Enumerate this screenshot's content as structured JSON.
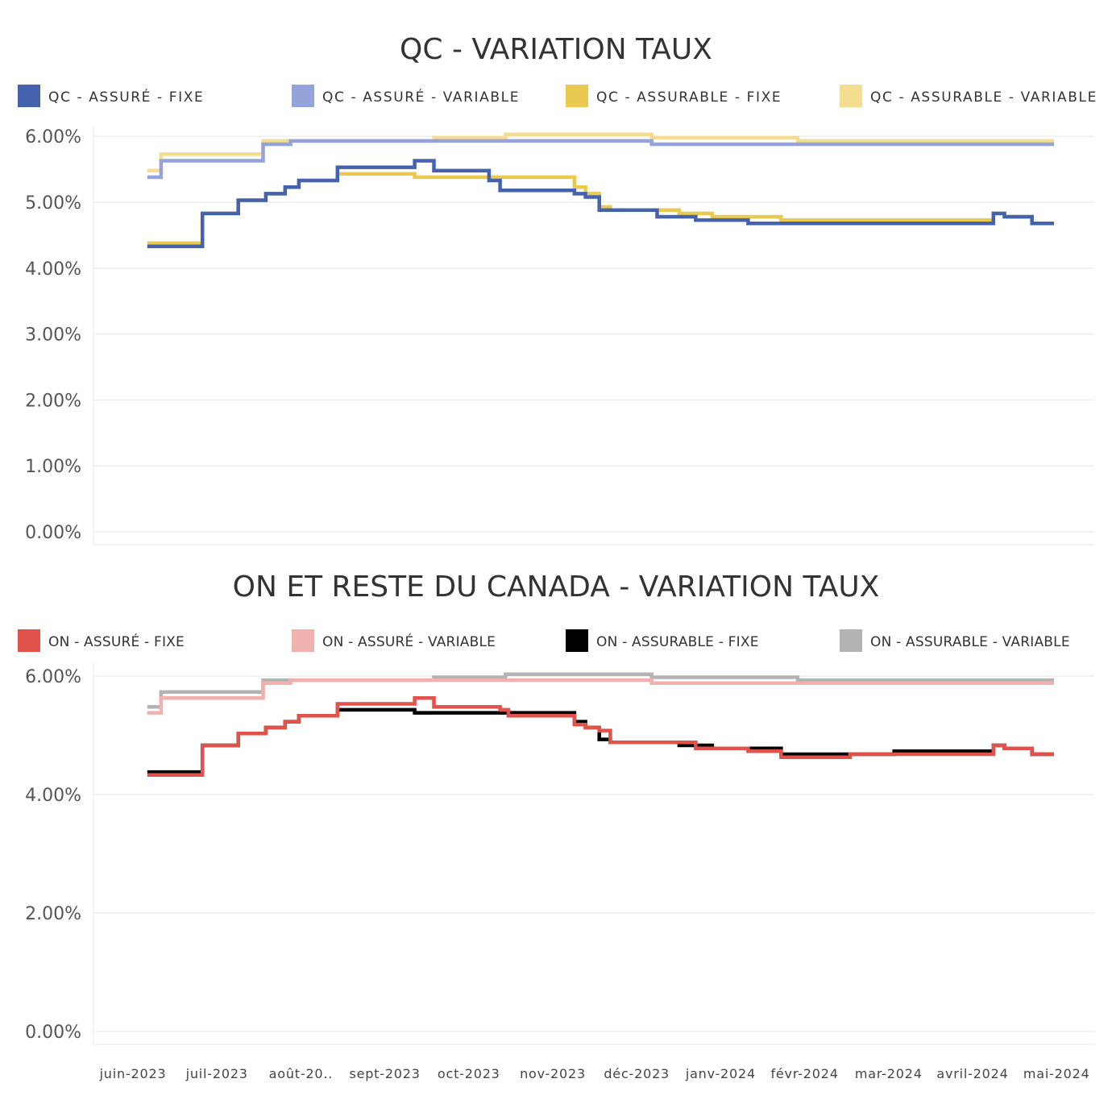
{
  "chart_data": [
    {
      "type": "line",
      "title": "QC - VARIATION TAUX",
      "xlabel": "",
      "ylabel": "",
      "ylim": [
        0,
        6.15
      ],
      "y_ticks": [
        "0.00%",
        "1.00%",
        "2.00%",
        "3.00%",
        "4.00%",
        "5.00%",
        "6.00%"
      ],
      "y_tick_values": [
        0,
        1,
        2,
        3,
        4,
        5,
        6
      ],
      "grid": true,
      "legend_position": "top",
      "series": [
        {
          "name": "QC - ASSURÉ - FIXE",
          "color": "#4563ad",
          "x": [
            "2023-05-31",
            "2023-06-20",
            "2023-06-20",
            "2023-07-03",
            "2023-07-03",
            "2023-07-13",
            "2023-07-13",
            "2023-07-20",
            "2023-07-20",
            "2023-07-25",
            "2023-07-25",
            "2023-08-08",
            "2023-08-08",
            "2023-09-05",
            "2023-09-05",
            "2023-09-12",
            "2023-09-12",
            "2023-09-17",
            "2023-09-17",
            "2023-10-02",
            "2023-10-02",
            "2023-10-06",
            "2023-10-06",
            "2023-11-02",
            "2023-11-02",
            "2023-11-06",
            "2023-11-06",
            "2023-11-11",
            "2023-11-11",
            "2023-11-15",
            "2023-11-15",
            "2023-12-02",
            "2023-12-02",
            "2023-12-16",
            "2023-12-16",
            "2024-01-04",
            "2024-01-04",
            "2024-01-16",
            "2024-01-16",
            "2024-04-02",
            "2024-04-02",
            "2024-04-06",
            "2024-04-06",
            "2024-04-16",
            "2024-04-16",
            "2024-04-24"
          ],
          "y": [
            4.33,
            4.33,
            4.83,
            4.83,
            5.03,
            5.03,
            5.13,
            5.13,
            5.23,
            5.23,
            5.33,
            5.33,
            5.53,
            5.53,
            5.63,
            5.63,
            5.48,
            5.48,
            5.48,
            5.48,
            5.33,
            5.33,
            5.18,
            5.18,
            5.13,
            5.13,
            5.08,
            5.08,
            4.88,
            4.88,
            4.88,
            4.88,
            4.78,
            4.78,
            4.73,
            4.73,
            4.68,
            4.68,
            4.68,
            4.68,
            4.83,
            4.83,
            4.78,
            4.78,
            4.68,
            4.68
          ]
        },
        {
          "name": "QC - ASSURÉ - VARIABLE",
          "color": "#96a3db",
          "x": [
            "2023-05-31",
            "2023-06-05",
            "2023-06-05",
            "2023-07-12",
            "2023-07-12",
            "2023-07-22",
            "2023-07-22",
            "2023-11-30",
            "2023-11-30",
            "2024-04-24"
          ],
          "y": [
            5.38,
            5.38,
            5.63,
            5.63,
            5.88,
            5.88,
            5.93,
            5.93,
            5.88,
            5.88
          ]
        },
        {
          "name": "QC - ASSURABLE - FIXE",
          "color": "#e9c94f",
          "x": [
            "2023-05-31",
            "2023-06-20",
            "2023-06-20",
            "2023-07-03",
            "2023-07-03",
            "2023-07-13",
            "2023-07-13",
            "2023-07-20",
            "2023-07-20",
            "2023-07-25",
            "2023-07-25",
            "2023-08-08",
            "2023-08-08",
            "2023-09-05",
            "2023-09-05",
            "2023-11-02",
            "2023-11-02",
            "2023-11-06",
            "2023-11-06",
            "2023-11-11",
            "2023-11-11",
            "2023-11-15",
            "2023-11-15",
            "2023-12-10",
            "2023-12-10",
            "2023-12-22",
            "2023-12-22",
            "2024-01-16",
            "2024-01-16",
            "2024-04-02",
            "2024-04-02",
            "2024-04-06",
            "2024-04-06",
            "2024-04-16",
            "2024-04-16",
            "2024-04-24"
          ],
          "y": [
            4.38,
            4.38,
            4.83,
            4.83,
            5.03,
            5.03,
            5.13,
            5.13,
            5.23,
            5.23,
            5.33,
            5.33,
            5.43,
            5.43,
            5.38,
            5.38,
            5.23,
            5.23,
            5.13,
            5.13,
            4.93,
            4.93,
            4.88,
            4.88,
            4.83,
            4.83,
            4.78,
            4.78,
            4.73,
            4.73,
            4.83,
            4.83,
            4.78,
            4.78,
            4.68,
            4.68
          ]
        },
        {
          "name": "QC - ASSURABLE - VARIABLE",
          "color": "#f4dd8e",
          "x": [
            "2023-05-31",
            "2023-06-05",
            "2023-06-05",
            "2023-07-12",
            "2023-07-12",
            "2023-09-12",
            "2023-09-12",
            "2023-10-08",
            "2023-10-08",
            "2023-11-30",
            "2023-11-30",
            "2024-01-22",
            "2024-01-22",
            "2024-04-24"
          ],
          "y": [
            5.48,
            5.48,
            5.73,
            5.73,
            5.93,
            5.93,
            5.98,
            5.98,
            6.03,
            6.03,
            5.98,
            5.98,
            5.93,
            5.93
          ]
        }
      ]
    },
    {
      "type": "line",
      "title": "ON ET RESTE DU CANADA - VARIATION TAUX",
      "xlabel": "",
      "ylabel": "",
      "ylim": [
        0,
        6.15
      ],
      "y_ticks": [
        "0.00%",
        "2.00%",
        "4.00%",
        "6.00%"
      ],
      "y_tick_values": [
        0,
        2,
        4,
        6
      ],
      "x_ticks": [
        "juin-2023",
        "juil-2023",
        "août-20..",
        "sept-2023",
        "oct-2023",
        "nov-2023",
        "déc-2023",
        "janv-2024",
        "févr-2024",
        "mar-2024",
        "avril-2024",
        "mai-2024"
      ],
      "grid": true,
      "legend_position": "top",
      "series": [
        {
          "name": "ON - ASSURÉ - FIXE",
          "color": "#e0524a",
          "x": [
            "2023-05-31",
            "2023-06-20",
            "2023-06-20",
            "2023-07-03",
            "2023-07-03",
            "2023-07-13",
            "2023-07-13",
            "2023-07-20",
            "2023-07-20",
            "2023-07-25",
            "2023-07-25",
            "2023-08-08",
            "2023-08-08",
            "2023-09-05",
            "2023-09-05",
            "2023-09-12",
            "2023-09-12",
            "2023-09-17",
            "2023-09-17",
            "2023-10-06",
            "2023-10-06",
            "2023-10-09",
            "2023-10-09",
            "2023-11-02",
            "2023-11-02",
            "2023-11-06",
            "2023-11-06",
            "2023-11-11",
            "2023-11-11",
            "2023-11-15",
            "2023-11-15",
            "2023-12-02",
            "2023-12-02",
            "2023-12-16",
            "2023-12-16",
            "2024-01-04",
            "2024-01-04",
            "2024-01-16",
            "2024-01-16",
            "2024-02-10",
            "2024-02-10",
            "2024-04-02",
            "2024-04-02",
            "2024-04-06",
            "2024-04-06",
            "2024-04-16",
            "2024-04-16",
            "2024-04-24"
          ],
          "y": [
            4.33,
            4.33,
            4.83,
            4.83,
            5.03,
            5.03,
            5.13,
            5.13,
            5.23,
            5.23,
            5.33,
            5.33,
            5.53,
            5.53,
            5.63,
            5.63,
            5.48,
            5.48,
            5.48,
            5.48,
            5.43,
            5.43,
            5.33,
            5.33,
            5.18,
            5.18,
            5.13,
            5.13,
            5.08,
            5.08,
            4.88,
            4.88,
            4.88,
            4.88,
            4.78,
            4.78,
            4.73,
            4.73,
            4.63,
            4.63,
            4.68,
            4.68,
            4.83,
            4.83,
            4.78,
            4.78,
            4.68,
            4.68
          ]
        },
        {
          "name": "ON - ASSURÉ - VARIABLE",
          "color": "#efb2ae",
          "x": [
            "2023-05-31",
            "2023-06-05",
            "2023-06-05",
            "2023-07-12",
            "2023-07-12",
            "2023-07-22",
            "2023-07-22",
            "2023-11-30",
            "2023-11-30",
            "2024-04-24"
          ],
          "y": [
            5.38,
            5.38,
            5.63,
            5.63,
            5.88,
            5.88,
            5.93,
            5.93,
            5.88,
            5.88
          ]
        },
        {
          "name": "ON - ASSURABLE - FIXE",
          "color": "#000000",
          "x": [
            "2023-05-31",
            "2023-06-20",
            "2023-06-20",
            "2023-07-03",
            "2023-07-03",
            "2023-07-13",
            "2023-07-13",
            "2023-07-20",
            "2023-07-20",
            "2023-07-25",
            "2023-07-25",
            "2023-08-08",
            "2023-08-08",
            "2023-09-05",
            "2023-09-05",
            "2023-11-02",
            "2023-11-02",
            "2023-11-06",
            "2023-11-06",
            "2023-11-11",
            "2023-11-11",
            "2023-11-15",
            "2023-11-15",
            "2023-12-10",
            "2023-12-10",
            "2023-12-22",
            "2023-12-22",
            "2024-01-16",
            "2024-01-16",
            "2024-02-26",
            "2024-02-26",
            "2024-04-02",
            "2024-04-02",
            "2024-04-06",
            "2024-04-06",
            "2024-04-16",
            "2024-04-16",
            "2024-04-24"
          ],
          "y": [
            4.38,
            4.38,
            4.83,
            4.83,
            5.03,
            5.03,
            5.13,
            5.13,
            5.23,
            5.23,
            5.33,
            5.33,
            5.43,
            5.43,
            5.38,
            5.38,
            5.23,
            5.23,
            5.13,
            5.13,
            4.93,
            4.93,
            4.88,
            4.88,
            4.83,
            4.83,
            4.78,
            4.78,
            4.68,
            4.68,
            4.73,
            4.73,
            4.83,
            4.83,
            4.78,
            4.78,
            4.68,
            4.68
          ]
        },
        {
          "name": "ON - ASSURABLE - VARIABLE",
          "color": "#b3b3b3",
          "x": [
            "2023-05-31",
            "2023-06-05",
            "2023-06-05",
            "2023-07-12",
            "2023-07-12",
            "2023-09-12",
            "2023-09-12",
            "2023-10-08",
            "2023-10-08",
            "2023-11-30",
            "2023-11-30",
            "2024-01-22",
            "2024-01-22",
            "2024-04-24"
          ],
          "y": [
            5.48,
            5.48,
            5.73,
            5.73,
            5.93,
            5.93,
            5.98,
            5.98,
            6.03,
            6.03,
            5.98,
            5.98,
            5.93,
            5.93
          ]
        }
      ]
    }
  ]
}
